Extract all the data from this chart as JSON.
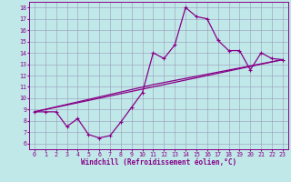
{
  "bg_color": "#c0e8e8",
  "line_color": "#880088",
  "grid_color": "#9999bb",
  "xlabel": "Windchill (Refroidissement éolien,°C)",
  "ylabel_ticks": [
    6,
    7,
    8,
    9,
    10,
    11,
    12,
    13,
    14,
    15,
    16,
    17,
    18
  ],
  "xlabel_ticks": [
    0,
    1,
    2,
    3,
    4,
    5,
    6,
    7,
    8,
    9,
    10,
    11,
    12,
    13,
    14,
    15,
    16,
    17,
    18,
    19,
    20,
    21,
    22,
    23
  ],
  "ylim": [
    5.5,
    18.5
  ],
  "xlim": [
    -0.5,
    23.5
  ],
  "series1_x": [
    0,
    1,
    2,
    3,
    4,
    5,
    6,
    7,
    8,
    9,
    10,
    11,
    12,
    13,
    14,
    15,
    16,
    17,
    18,
    19,
    20,
    21,
    22,
    23
  ],
  "series1_y": [
    8.8,
    8.8,
    8.8,
    7.5,
    8.2,
    6.8,
    6.5,
    6.7,
    7.9,
    9.2,
    10.5,
    14.0,
    13.5,
    14.7,
    18.0,
    17.2,
    17.0,
    15.1,
    14.2,
    14.2,
    12.5,
    14.0,
    13.5,
    13.4
  ],
  "series2_x": [
    0,
    23
  ],
  "series2_y": [
    8.8,
    13.4
  ],
  "series3_x": [
    0,
    11,
    23
  ],
  "series3_y": [
    8.8,
    11.2,
    13.4
  ],
  "marker": "+",
  "markersize": 3.5,
  "linewidth": 0.9,
  "tick_fontsize": 4.8,
  "xlabel_fontsize": 5.5,
  "font_family": "monospace"
}
